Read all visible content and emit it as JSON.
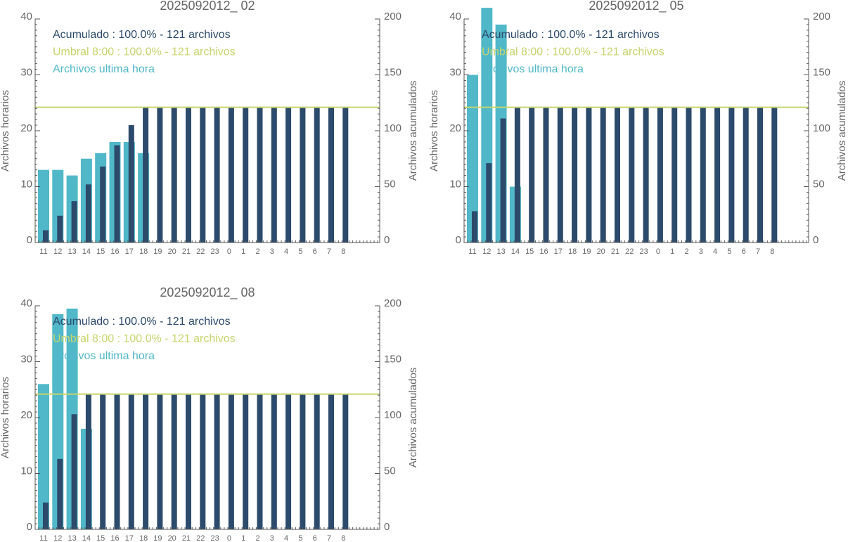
{
  "chart_data": [
    {
      "type": "bar",
      "title": "2025092012_ 02",
      "categories": [
        "11",
        "12",
        "13",
        "14",
        "15",
        "16",
        "17",
        "18",
        "19",
        "20",
        "21",
        "22",
        "23",
        "0",
        "1",
        "2",
        "3",
        "4",
        "5",
        "6",
        "7",
        "8"
      ],
      "ylabel": "Archivos horarios",
      "y2label": "Archivos acumulados",
      "ylim": [
        0,
        40
      ],
      "yticks": [
        0,
        10,
        20,
        30,
        40
      ],
      "y2lim": [
        0,
        200
      ],
      "y2ticks": [
        0,
        50,
        100,
        150,
        200
      ],
      "series": [
        {
          "name": "Acumulado : 100.0% - 121 archivos",
          "color": "#2c4a6b",
          "axis": "y2",
          "values": [
            11,
            24,
            37,
            52,
            68,
            87,
            105,
            121,
            121,
            121,
            121,
            121,
            121,
            121,
            121,
            121,
            121,
            121,
            121,
            121,
            121,
            121
          ]
        },
        {
          "name": "Archivos ultima hora",
          "color": "#50b8c8",
          "values": [
            13,
            13,
            12,
            15,
            16,
            18,
            18,
            16,
            null,
            null,
            null,
            null,
            null,
            null,
            null,
            null,
            null,
            null,
            null,
            null,
            null,
            null
          ]
        }
      ],
      "threshold": {
        "name": "Umbral 8:00 : 100.0% - 121 archivos",
        "color": "#c8d46c",
        "axis": "y2",
        "value": 121
      },
      "legend": "upper left"
    },
    {
      "type": "bar",
      "title": "2025092012_ 05",
      "categories": [
        "11",
        "12",
        "13",
        "14",
        "15",
        "16",
        "17",
        "18",
        "19",
        "20",
        "21",
        "22",
        "23",
        "0",
        "1",
        "2",
        "3",
        "4",
        "5",
        "6",
        "7",
        "8"
      ],
      "ylabel": "Archivos horarios",
      "y2label": "Archivos acumulados",
      "ylim": [
        0,
        40
      ],
      "yticks": [
        0,
        10,
        20,
        30,
        40
      ],
      "y2lim": [
        0,
        200
      ],
      "y2ticks": [
        0,
        50,
        100,
        150,
        200
      ],
      "series": [
        {
          "name": "Acumulado : 100.0% - 121 archivos",
          "color": "#2c4a6b",
          "axis": "y2",
          "values": [
            28,
            71,
            111,
            121,
            121,
            121,
            121,
            121,
            121,
            121,
            121,
            121,
            121,
            121,
            121,
            121,
            121,
            121,
            121,
            121,
            121,
            121
          ]
        },
        {
          "name": "Archivos ultima hora",
          "color": "#50b8c8",
          "values": [
            30,
            42,
            39,
            10,
            null,
            null,
            null,
            null,
            null,
            null,
            null,
            null,
            null,
            null,
            null,
            null,
            null,
            null,
            null,
            null,
            null,
            null
          ]
        }
      ],
      "threshold": {
        "name": "Umbral 8:00 : 100.0% - 121 archivos",
        "color": "#c8d46c",
        "axis": "y2",
        "value": 121
      },
      "legend": "upper left"
    },
    {
      "type": "bar",
      "title": "2025092012_ 08",
      "categories": [
        "11",
        "12",
        "13",
        "14",
        "15",
        "16",
        "17",
        "18",
        "19",
        "20",
        "21",
        "22",
        "23",
        "0",
        "1",
        "2",
        "3",
        "4",
        "5",
        "6",
        "7",
        "8"
      ],
      "ylabel": "Archivos horarios",
      "y2label": "Archivos acumulados",
      "ylim": [
        0,
        40
      ],
      "yticks": [
        0,
        10,
        20,
        30,
        40
      ],
      "y2lim": [
        0,
        200
      ],
      "y2ticks": [
        0,
        50,
        100,
        150,
        200
      ],
      "series": [
        {
          "name": "Acumulado : 100.0% - 121 archivos",
          "color": "#2c4a6b",
          "axis": "y2",
          "values": [
            24,
            63,
            103,
            121,
            121,
            121,
            121,
            121,
            121,
            121,
            121,
            121,
            121,
            121,
            121,
            121,
            121,
            121,
            121,
            121,
            121,
            121
          ]
        },
        {
          "name": "Archivos ultima hora",
          "color": "#50b8c8",
          "values": [
            26,
            38.5,
            39.5,
            18,
            null,
            null,
            null,
            null,
            null,
            null,
            null,
            null,
            null,
            null,
            null,
            null,
            null,
            null,
            null,
            null,
            null,
            null
          ]
        }
      ],
      "threshold": {
        "name": "Umbral 8:00 : 100.0% - 121 archivos",
        "color": "#c8d46c",
        "axis": "y2",
        "value": 121
      },
      "legend": "upper left"
    }
  ]
}
